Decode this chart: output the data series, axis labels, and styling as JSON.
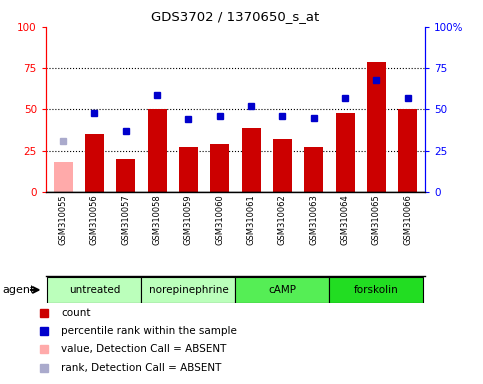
{
  "title": "GDS3702 / 1370650_s_at",
  "samples": [
    "GSM310055",
    "GSM310056",
    "GSM310057",
    "GSM310058",
    "GSM310059",
    "GSM310060",
    "GSM310061",
    "GSM310062",
    "GSM310063",
    "GSM310064",
    "GSM310065",
    "GSM310066"
  ],
  "count_values": [
    18,
    35,
    20,
    50,
    27,
    29,
    39,
    32,
    27,
    48,
    79,
    50
  ],
  "count_absent": [
    true,
    false,
    false,
    false,
    false,
    false,
    false,
    false,
    false,
    false,
    false,
    false
  ],
  "rank_values": [
    31,
    48,
    37,
    59,
    44,
    46,
    52,
    46,
    45,
    57,
    68,
    57
  ],
  "rank_absent": [
    true,
    false,
    false,
    false,
    false,
    false,
    false,
    false,
    false,
    false,
    false,
    false
  ],
  "groups": [
    {
      "label": "untreated",
      "start": 0,
      "end": 2
    },
    {
      "label": "norepinephrine",
      "start": 3,
      "end": 5
    },
    {
      "label": "cAMP",
      "start": 6,
      "end": 8
    },
    {
      "label": "forskolin",
      "start": 9,
      "end": 11
    }
  ],
  "group_colors": [
    "#bbffbb",
    "#bbffbb",
    "#55ee55",
    "#22dd22"
  ],
  "ylim": [
    0,
    100
  ],
  "yticks": [
    0,
    25,
    50,
    75,
    100
  ],
  "bar_color": "#cc0000",
  "bar_absent_color": "#ffaaaa",
  "rank_color": "#0000cc",
  "rank_absent_color": "#aaaacc",
  "sample_bg_color": "#cccccc",
  "plot_bg": "#ffffff",
  "agent_label": "agent",
  "legend_labels": [
    "count",
    "percentile rank within the sample",
    "value, Detection Call = ABSENT",
    "rank, Detection Call = ABSENT"
  ],
  "legend_colors": [
    "#cc0000",
    "#0000cc",
    "#ffaaaa",
    "#aaaacc"
  ]
}
